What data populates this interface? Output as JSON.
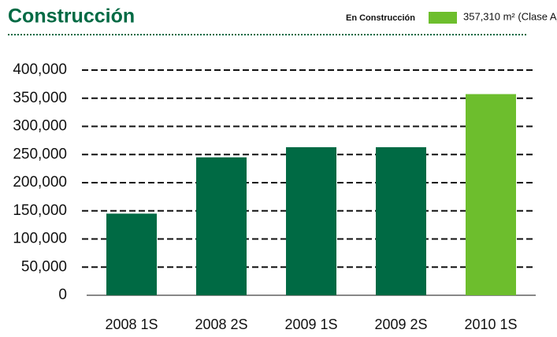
{
  "chart_data": {
    "type": "bar",
    "title": "Construcción",
    "legend": {
      "title": "En Construcción",
      "label": "357,310 m² (Clase A)",
      "color": "#6dbe2d"
    },
    "categories": [
      "2008 1S",
      "2008 2S",
      "2009 1S",
      "2009 2S",
      "2010 1S"
    ],
    "values": [
      145000,
      245000,
      263000,
      263000,
      357310
    ],
    "colors": [
      "#006a44",
      "#006a44",
      "#006a44",
      "#006a44",
      "#6dbe2d"
    ],
    "ylim": [
      0,
      400000
    ],
    "yticks": [
      0,
      {
        "value": 50000,
        "label": "50,000"
      },
      {
        "value": 100000,
        "label": "100,000"
      },
      {
        "value": 150000,
        "label": "150,000"
      },
      {
        "value": 200000,
        "label": "200,000"
      },
      {
        "value": 250000,
        "label": "250,000"
      },
      {
        "value": 300000,
        "label": "300,000"
      },
      {
        "value": 350000,
        "label": "350,000"
      },
      {
        "value": 400000,
        "label": "400,000"
      }
    ],
    "grid": true
  }
}
